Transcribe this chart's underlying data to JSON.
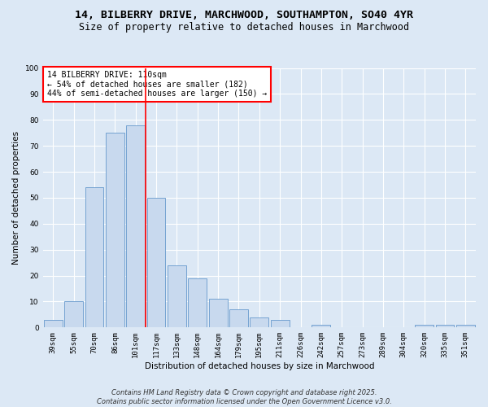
{
  "title_line1": "14, BILBERRY DRIVE, MARCHWOOD, SOUTHAMPTON, SO40 4YR",
  "title_line2": "Size of property relative to detached houses in Marchwood",
  "xlabel": "Distribution of detached houses by size in Marchwood",
  "ylabel": "Number of detached properties",
  "bar_color": "#c8d9ee",
  "bar_edge_color": "#6699cc",
  "bg_color": "#dce8f5",
  "fig_bg_color": "#dce8f5",
  "grid_color": "#ffffff",
  "categories": [
    "39sqm",
    "55sqm",
    "70sqm",
    "86sqm",
    "101sqm",
    "117sqm",
    "133sqm",
    "148sqm",
    "164sqm",
    "179sqm",
    "195sqm",
    "211sqm",
    "226sqm",
    "242sqm",
    "257sqm",
    "273sqm",
    "289sqm",
    "304sqm",
    "320sqm",
    "335sqm",
    "351sqm"
  ],
  "values": [
    3,
    10,
    54,
    75,
    78,
    50,
    24,
    19,
    11,
    7,
    4,
    3,
    0,
    1,
    0,
    0,
    0,
    0,
    1,
    1,
    1
  ],
  "red_line_x": 4.5,
  "annotation_text": "14 BILBERRY DRIVE: 110sqm\n← 54% of detached houses are smaller (182)\n44% of semi-detached houses are larger (150) →",
  "ylim": [
    0,
    100
  ],
  "yticks": [
    0,
    10,
    20,
    30,
    40,
    50,
    60,
    70,
    80,
    90,
    100
  ],
  "footer_line1": "Contains HM Land Registry data © Crown copyright and database right 2025.",
  "footer_line2": "Contains public sector information licensed under the Open Government Licence v3.0.",
  "title_fontsize": 9.5,
  "subtitle_fontsize": 8.5,
  "axis_label_fontsize": 7.5,
  "tick_fontsize": 6.5,
  "annotation_fontsize": 7,
  "footer_fontsize": 6
}
